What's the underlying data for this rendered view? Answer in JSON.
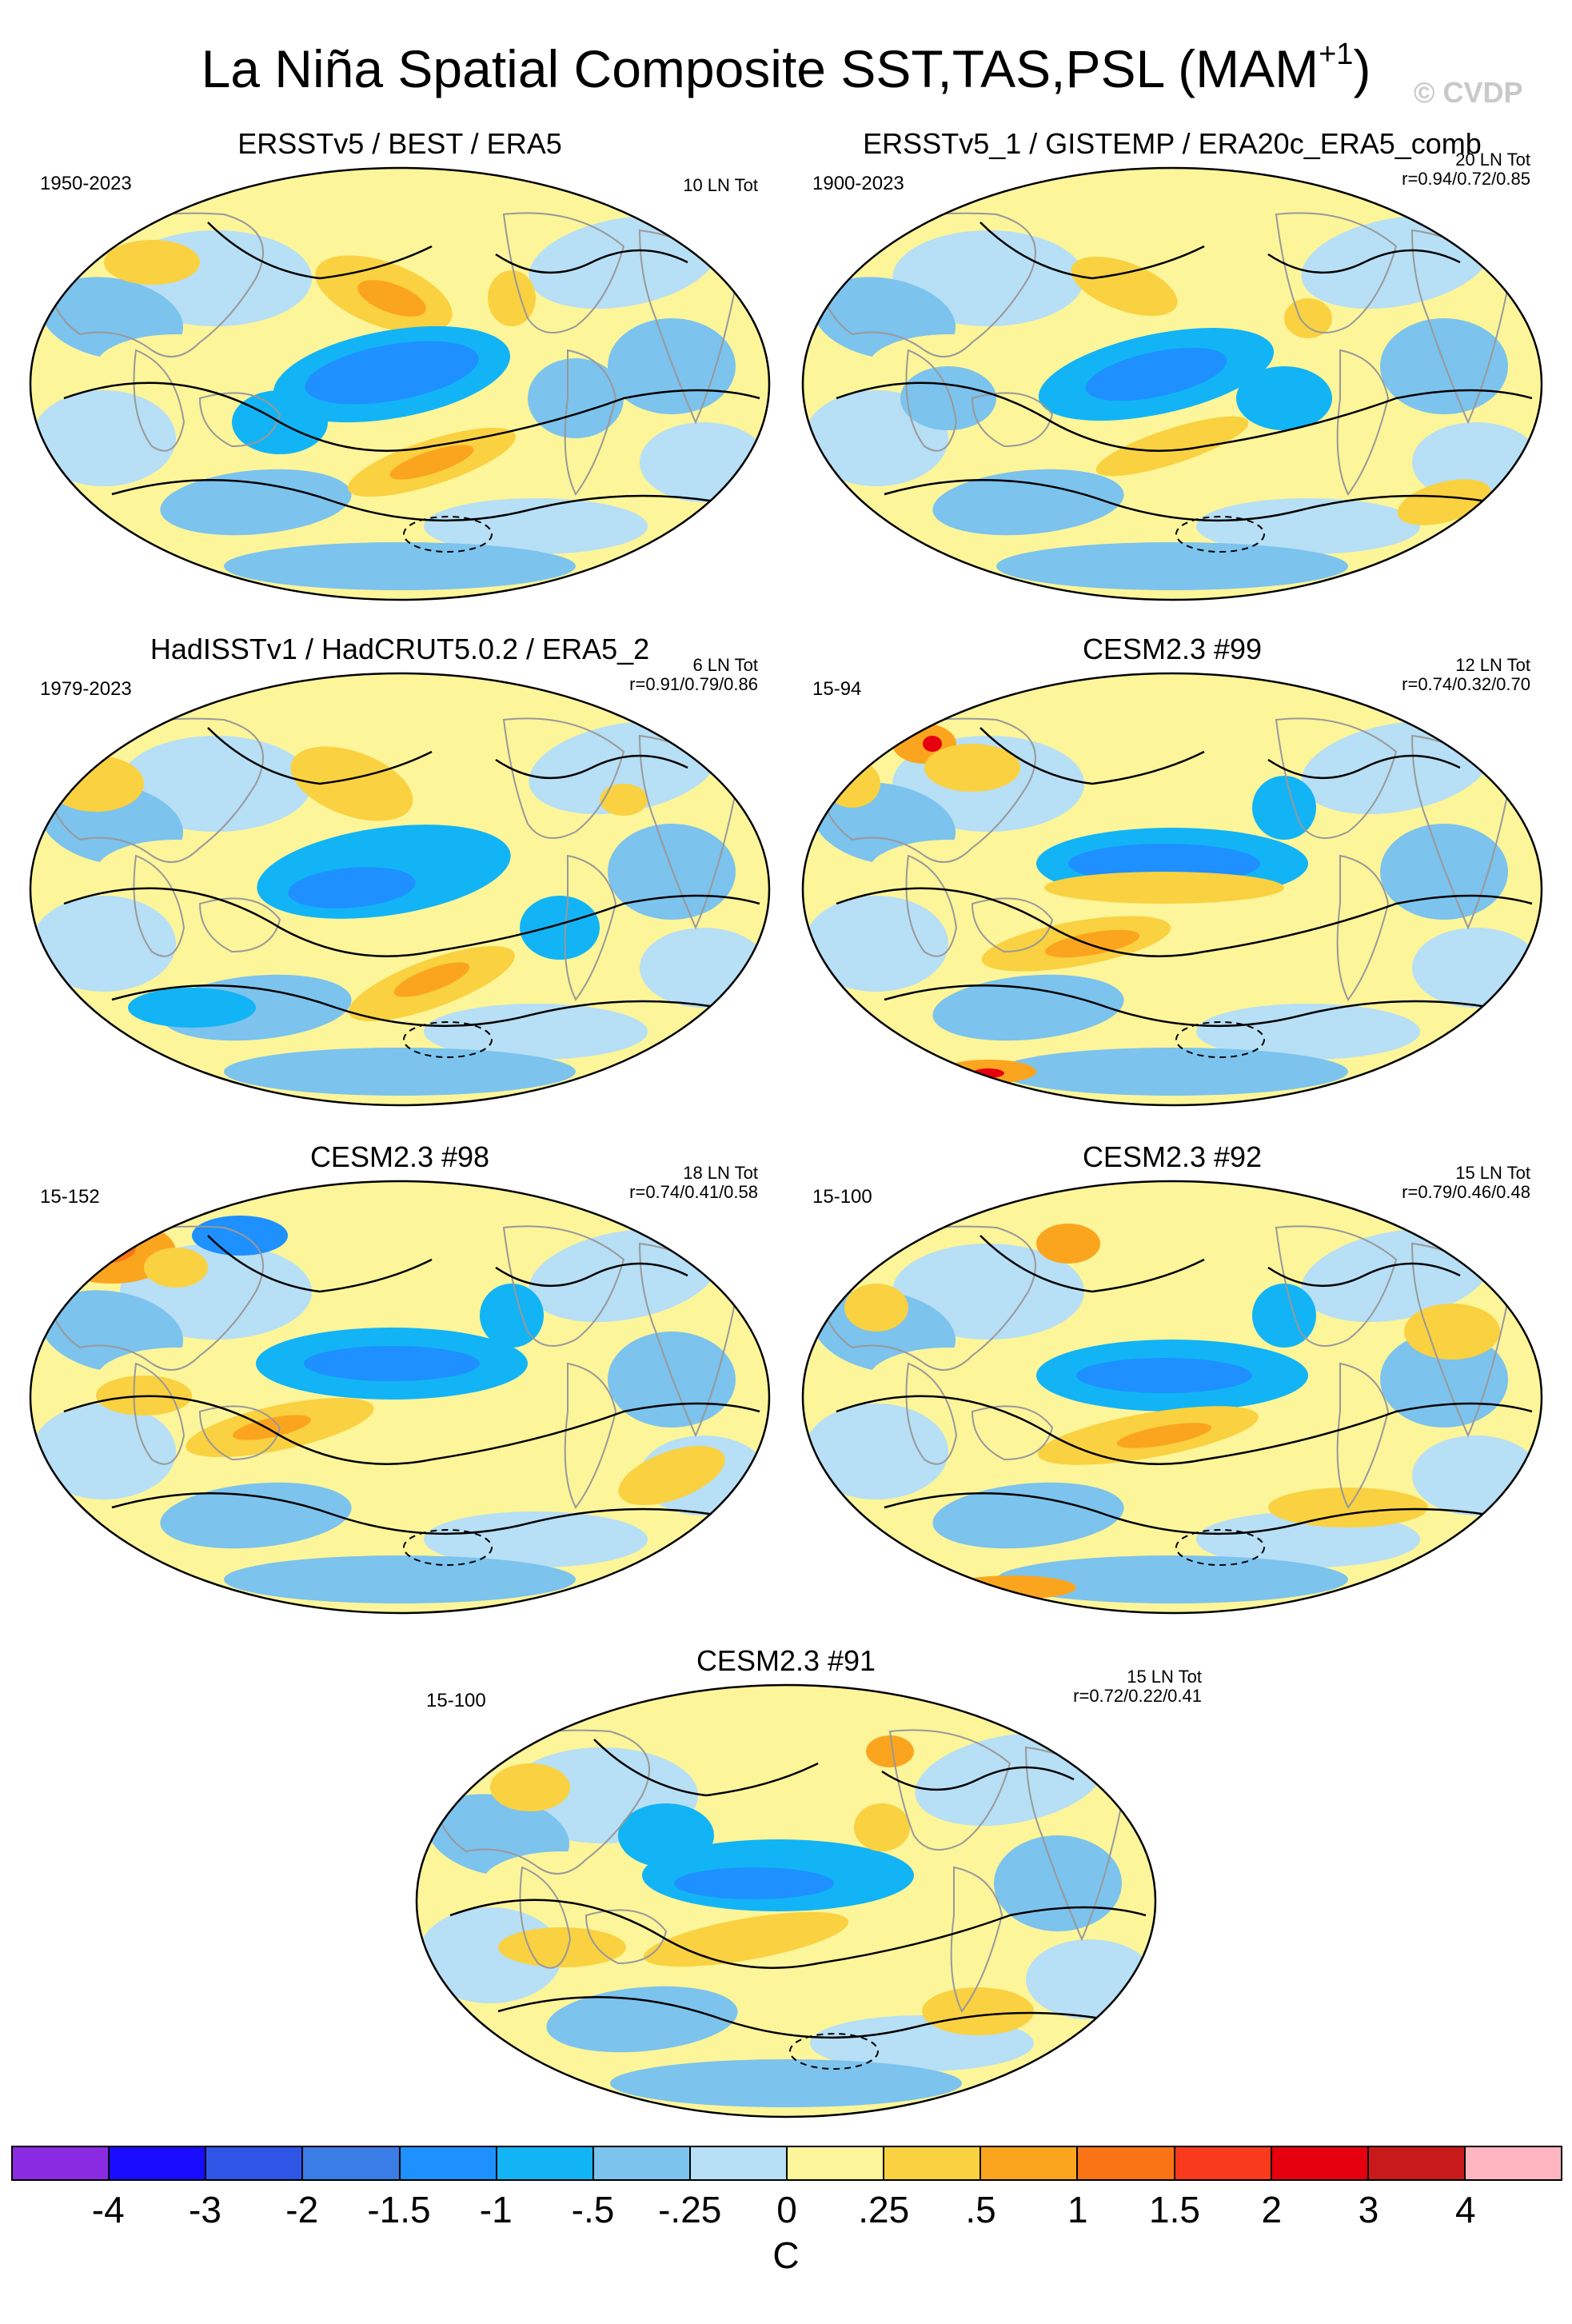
{
  "title": {
    "main": "La Niña Spatial Composite SST,TAS,PSL (MAM",
    "sup": "+1",
    "close": ")"
  },
  "watermark": "© CVDP",
  "panels": [
    {
      "title": "ERSSTv5 / BEST / ERA5",
      "years": "1950-2023",
      "count": "10 LN Tot",
      "corr": ""
    },
    {
      "title": "ERSSTv5_1 / GISTEMP / ERA20c_ERA5_comb",
      "years": "1900-2023",
      "count": "20 LN Tot",
      "corr": "r=0.94/0.72/0.85"
    },
    {
      "title": "HadISSTv1 / HadCRUT5.0.2 / ERA5_2",
      "years": "1979-2023",
      "count": "6 LN Tot",
      "corr": "r=0.91/0.79/0.86"
    },
    {
      "title": "CESM2.3 #99",
      "years": "15-94",
      "count": "12 LN Tot",
      "corr": "r=0.74/0.32/0.70"
    },
    {
      "title": "CESM2.3 #98",
      "years": "15-152",
      "count": "18 LN Tot",
      "corr": "r=0.74/0.41/0.58"
    },
    {
      "title": "CESM2.3 #92",
      "years": "15-100",
      "count": "15 LN Tot",
      "corr": "r=0.79/0.46/0.48"
    },
    {
      "title": "CESM2.3 #91",
      "years": "15-100",
      "count": "15 LN Tot",
      "corr": "r=0.72/0.22/0.41"
    }
  ],
  "colorbar": {
    "colors": [
      "#8a2be2",
      "#1a0dff",
      "#2f55e6",
      "#3a7de6",
      "#1e90ff",
      "#12b4f5",
      "#7cc3ee",
      "#b7dff5",
      "#fcf59a",
      "#fad140",
      "#fba51f",
      "#fa7415",
      "#fa3a1c",
      "#e6000d",
      "#c81a1a",
      "#ffb6c1"
    ],
    "labels": [
      "-4",
      "-3",
      "-2",
      "-1.5",
      "-1",
      "-.5",
      "-.25",
      "0",
      ".25",
      ".5",
      "1",
      "1.5",
      "2",
      "3",
      "4"
    ],
    "unit": "C"
  }
}
